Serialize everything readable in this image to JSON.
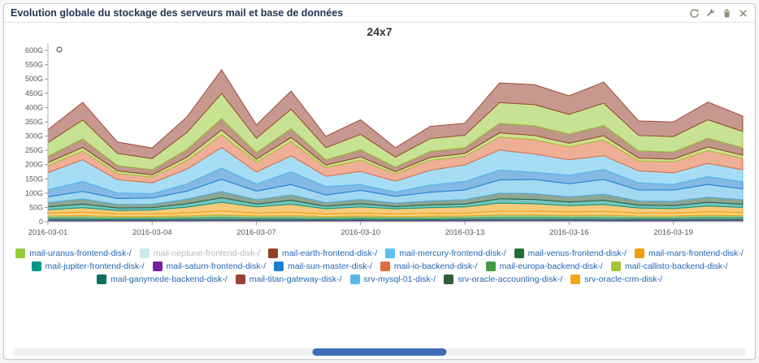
{
  "widget": {
    "title": "Evolution globale du stockage des serveurs mail et base de données",
    "toolbar": [
      {
        "name": "refresh-icon"
      },
      {
        "name": "wrench-icon"
      },
      {
        "name": "trash-icon"
      },
      {
        "name": "close-icon"
      }
    ]
  },
  "chart_data": {
    "type": "area",
    "stacked": true,
    "title": "24x7",
    "unit": "G",
    "ylim": [
      0,
      620
    ],
    "y_ticks": [
      "0",
      "50G",
      "100G",
      "150G",
      "200G",
      "250G",
      "300G",
      "350G",
      "400G",
      "450G",
      "500G",
      "550G",
      "600G"
    ],
    "y_tick_values": [
      0,
      50,
      100,
      150,
      200,
      250,
      300,
      350,
      400,
      450,
      500,
      550,
      600
    ],
    "x_tick_labels": [
      "2016-03-01",
      "2016-03-04",
      "2016-03-07",
      "2016-03-10",
      "2016-03-13",
      "2016-03-16",
      "2016-03-19"
    ],
    "x_tick_positions": [
      0,
      3,
      6,
      9,
      12,
      15,
      18
    ],
    "x_days_total": 20,
    "series": [
      {
        "name": "mail-venus-frontend-disk-/",
        "color": "#206e38",
        "values": [
          4,
          4,
          4,
          4,
          4,
          5,
          4,
          4,
          4,
          4,
          4,
          4,
          4,
          5,
          5,
          5,
          4,
          4,
          4,
          5,
          5
        ]
      },
      {
        "name": "mail-saturn-frontend-disk-/",
        "color": "#7b1fa2",
        "values": [
          2,
          2,
          2,
          2,
          2,
          2,
          2,
          2,
          2,
          2,
          2,
          2,
          2,
          2,
          2,
          2,
          2,
          2,
          2,
          2,
          2
        ]
      },
      {
        "name": "mail-ganymede-backend-disk-/",
        "color": "#0b6e5f",
        "values": [
          6,
          6,
          5,
          5,
          6,
          7,
          6,
          6,
          5,
          6,
          5,
          5,
          6,
          7,
          7,
          6,
          7,
          6,
          6,
          7,
          6
        ]
      },
      {
        "name": "mail-europa-backend-disk-/",
        "color": "#3f9c44",
        "values": [
          8,
          9,
          7,
          7,
          8,
          10,
          8,
          9,
          7,
          8,
          7,
          8,
          8,
          10,
          10,
          9,
          10,
          8,
          8,
          9,
          8
        ]
      },
      {
        "name": "srv-oracle-crm-disk-/",
        "color": "#f3a818",
        "values": [
          10,
          12,
          9,
          9,
          11,
          14,
          10,
          12,
          9,
          10,
          9,
          10,
          10,
          13,
          13,
          12,
          13,
          10,
          10,
          12,
          11
        ]
      },
      {
        "name": "mail-mars-frontend-disk-/",
        "color": "#ef9e0e",
        "values": [
          12,
          16,
          12,
          14,
          20,
          30,
          22,
          28,
          18,
          22,
          18,
          20,
          22,
          28,
          26,
          22,
          24,
          18,
          16,
          20,
          18
        ]
      },
      {
        "name": "mail-jupiter-frontend-disk-/",
        "color": "#009688",
        "values": [
          10,
          13,
          9,
          8,
          12,
          16,
          10,
          14,
          9,
          11,
          8,
          10,
          10,
          15,
          15,
          13,
          15,
          10,
          10,
          13,
          11
        ]
      },
      {
        "name": "srv-oracle-accounting-disk-/",
        "color": "#2f5d3a",
        "values": [
          15,
          18,
          13,
          12,
          16,
          22,
          15,
          19,
          13,
          15,
          12,
          14,
          15,
          20,
          20,
          18,
          21,
          15,
          15,
          18,
          16
        ]
      },
      {
        "name": "srv-mysql-01-disk-/",
        "color": "#58b8e8",
        "values": [
          20,
          26,
          20,
          22,
          28,
          42,
          30,
          36,
          26,
          32,
          24,
          30,
          34,
          46,
          50,
          46,
          52,
          38,
          40,
          44,
          38
        ]
      },
      {
        "name": "mail-sun-master-disk-/",
        "color": "#1f7ed0",
        "values": [
          25,
          35,
          20,
          15,
          25,
          40,
          25,
          45,
          30,
          20,
          15,
          25,
          30,
          35,
          25,
          30,
          35,
          25,
          20,
          28,
          25
        ]
      },
      {
        "name": "mail-mercury-frontend-disk-/",
        "color": "#5cc1ec",
        "values": [
          60,
          76,
          46,
          38,
          52,
          72,
          42,
          56,
          36,
          46,
          38,
          52,
          58,
          70,
          64,
          54,
          48,
          42,
          40,
          46,
          42
        ]
      },
      {
        "name": "mail-io-backend-disk-/",
        "color": "#e26b3f",
        "values": [
          25,
          30,
          22,
          20,
          30,
          45,
          35,
          50,
          30,
          40,
          25,
          35,
          30,
          45,
          50,
          45,
          55,
          35,
          38,
          45,
          40
        ]
      },
      {
        "name": "mail-callisto-backend-disk-/",
        "color": "#a3c636",
        "values": [
          10,
          13,
          9,
          8,
          12,
          16,
          10,
          14,
          9,
          11,
          8,
          10,
          10,
          15,
          15,
          13,
          15,
          10,
          10,
          13,
          11
        ]
      },
      {
        "name": "mail-earth-frontend-disk-/",
        "color": "#8d4026",
        "values": [
          22,
          30,
          19,
          18,
          27,
          40,
          23,
          31,
          19,
          25,
          16,
          21,
          20,
          33,
          34,
          32,
          36,
          25,
          25,
          30,
          26
        ]
      },
      {
        "name": "mail-uranus-frontend-disk-/",
        "color": "#9aca3c",
        "values": [
          48,
          66,
          42,
          39,
          59,
          88,
          50,
          68,
          42,
          54,
          35,
          45,
          44,
          73,
          74,
          69,
          78,
          54,
          54,
          65,
          57
        ]
      },
      {
        "name": "mail-titan-gateway-disk-/",
        "color": "#994433",
        "values": [
          45,
          62,
          40,
          37,
          55,
          83,
          47,
          64,
          40,
          51,
          33,
          43,
          42,
          69,
          70,
          65,
          74,
          51,
          51,
          62,
          54
        ]
      },
      {
        "name": "mail-neptune-frontend-disk-/",
        "color": "#cfe8ef",
        "hidden": true,
        "values": []
      }
    ],
    "legend": [
      {
        "label": "mail-uranus-frontend-disk-/",
        "color": "#9aca3c",
        "muted": false
      },
      {
        "label": "mail-neptune-frontend-disk-/",
        "color": "#cfe8ef",
        "muted": true
      },
      {
        "label": "mail-earth-frontend-disk-/",
        "color": "#8d4026",
        "muted": false
      },
      {
        "label": "mail-mercury-frontend-disk-/",
        "color": "#5cc1ec",
        "muted": false
      },
      {
        "label": "mail-venus-frontend-disk-/",
        "color": "#206e38",
        "muted": false
      },
      {
        "label": "mail-mars-frontend-disk-/",
        "color": "#ef9e0e",
        "muted": false
      },
      {
        "label": "mail-jupiter-frontend-disk-/",
        "color": "#009688",
        "muted": false
      },
      {
        "label": "mail-saturn-frontend-disk-/",
        "color": "#7b1fa2",
        "muted": false
      },
      {
        "label": "mail-sun-master-disk-/",
        "color": "#1f7ed0",
        "muted": false
      },
      {
        "label": "mail-io-backend-disk-/",
        "color": "#e26b3f",
        "muted": false
      },
      {
        "label": "mail-europa-backend-disk-/",
        "color": "#3f9c44",
        "muted": false
      },
      {
        "label": "mail-callisto-backend-disk-/",
        "color": "#a3c636",
        "muted": false
      },
      {
        "label": "mail-ganymede-backend-disk-/",
        "color": "#0b6e5f",
        "muted": false
      },
      {
        "label": "mail-titan-gateway-disk-/",
        "color": "#994433",
        "muted": false
      },
      {
        "label": "srv-mysql-01-disk-/",
        "color": "#58b8e8",
        "muted": false
      },
      {
        "label": "srv-oracle-accounting-disk-/",
        "color": "#2f5d3a",
        "muted": false
      },
      {
        "label": "srv-oracle-crm-disk-/",
        "color": "#f3a818",
        "muted": false
      }
    ]
  }
}
